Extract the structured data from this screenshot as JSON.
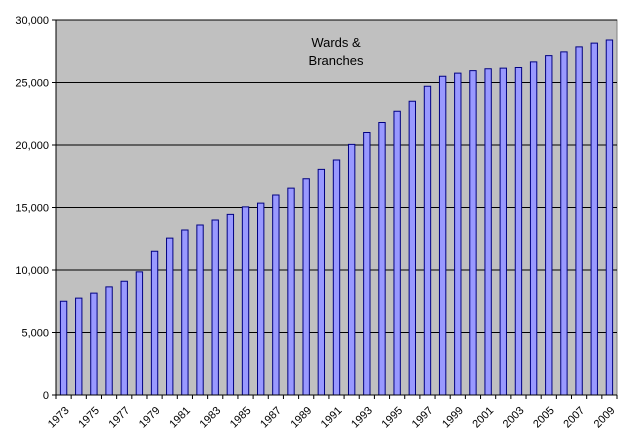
{
  "chart_data": {
    "type": "bar",
    "title": "",
    "xlabel": "",
    "ylabel": "",
    "ylim": [
      0,
      30000
    ],
    "yticks": [
      "0",
      "5,000",
      "10,000",
      "15,000",
      "20,000",
      "25,000",
      "30,000"
    ],
    "ytick_values": [
      0,
      5000,
      10000,
      15000,
      20000,
      25000,
      30000
    ],
    "grid": true,
    "annotation": [
      "Wards &",
      "Branches"
    ],
    "categories": [
      "1973",
      "1974",
      "1975",
      "1976",
      "1977",
      "1978",
      "1979",
      "1980",
      "1981",
      "1982",
      "1983",
      "1984",
      "1985",
      "1986",
      "1987",
      "1988",
      "1989",
      "1990",
      "1991",
      "1992",
      "1993",
      "1994",
      "1995",
      "1996",
      "1997",
      "1998",
      "1999",
      "2000",
      "2001",
      "2002",
      "2003",
      "2004",
      "2005",
      "2006",
      "2007",
      "2008",
      "2009"
    ],
    "xtick_labels": [
      "1973",
      "1975",
      "1977",
      "1979",
      "1981",
      "1983",
      "1985",
      "1987",
      "1989",
      "1991",
      "1993",
      "1995",
      "1997",
      "1999",
      "2001",
      "2003",
      "2005",
      "2007",
      "2009"
    ],
    "values": [
      7500,
      7750,
      8150,
      8650,
      9100,
      9850,
      11500,
      12550,
      13200,
      13600,
      14000,
      14450,
      15050,
      15350,
      16000,
      16550,
      17300,
      18050,
      18800,
      20050,
      21000,
      21800,
      22700,
      23500,
      24700,
      25500,
      25750,
      25950,
      26100,
      26150,
      26200,
      26650,
      27150,
      27450,
      27850,
      28150,
      28400
    ],
    "colors": {
      "plot_background": "#c0c0c0",
      "bar_fill": "#9999ff",
      "bar_stroke": "#000080",
      "gridline": "#000000"
    }
  }
}
